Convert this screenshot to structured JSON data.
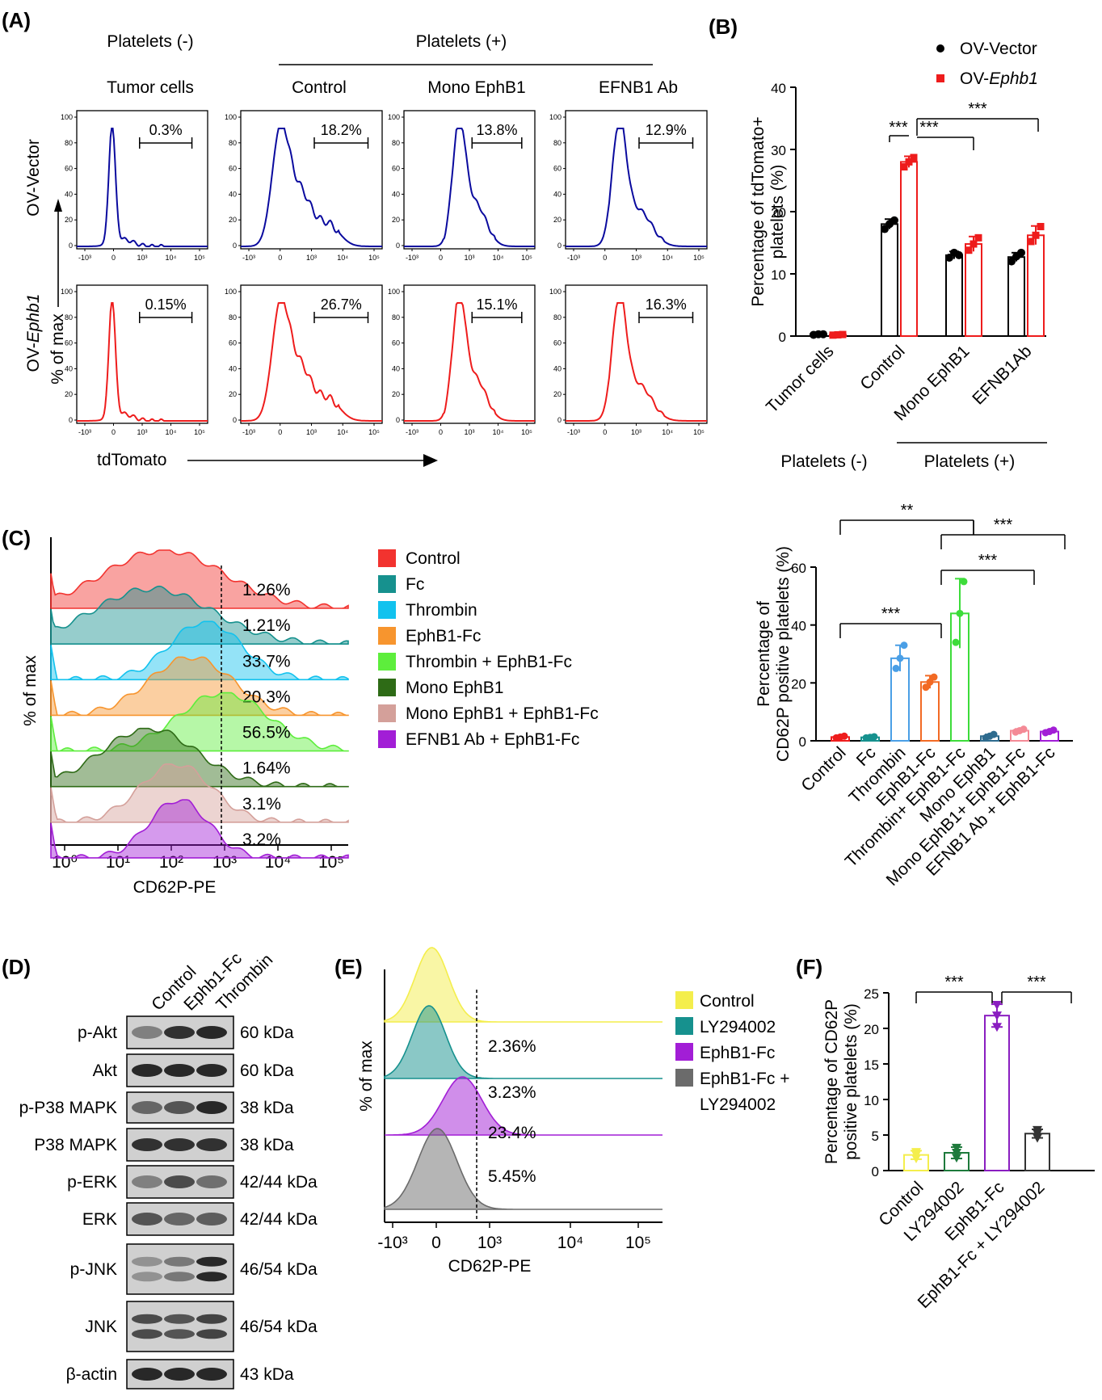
{
  "panel_labels": [
    "(A)",
    "(B)",
    "(C)",
    "(D)",
    "(E)",
    "(F)"
  ],
  "panel_a": {
    "header_platelets_neg": "Platelets (-)",
    "header_platelets_pos": "Platelets (+)",
    "columns": [
      "Tumor cells",
      "Control",
      "Mono EphB1",
      "EFNB1 Ab"
    ],
    "row_labels": {
      "ov_vector": "OV-Vector",
      "ov_ephb1_prefix": "OV-",
      "ov_ephb1_gene": "Ephb1"
    },
    "y_label": "% of max",
    "x_label": "tdTomato",
    "y_ticks": [
      "0",
      "20",
      "40",
      "60",
      "80",
      "100"
    ],
    "x_ticks": [
      "-10³",
      "0",
      "10³",
      "10⁴",
      "10⁵"
    ],
    "colors": {
      "ov_vector": "#0a0a9e",
      "ov_ephb1": "#ee1c1c"
    },
    "gates_ov_vector": [
      "0.3%",
      "18.2%",
      "13.8%",
      "12.9%"
    ],
    "gates_ov_ephb1": [
      "0.15%",
      "26.7%",
      "15.1%",
      "16.3%"
    ]
  },
  "panel_c": {
    "x_label": "CD62P-PE",
    "y_label": "% of max",
    "x_ticks": [
      "10⁰",
      "10¹",
      "10²",
      "10³",
      "10⁴",
      "10⁵"
    ],
    "legend": [
      {
        "label": "Control",
        "color": "#f2332f"
      },
      {
        "label": "Fc",
        "color": "#16918e"
      },
      {
        "label": "Thrombin",
        "color": "#12c2ee"
      },
      {
        "label": "EphB1-Fc",
        "color": "#f7952e"
      },
      {
        "label": "Thrombin + EphB1-Fc",
        "color": "#5dee3c"
      },
      {
        "label": "Mono EphB1",
        "color": "#2e6b16"
      },
      {
        "label": "Mono EphB1 + EphB1-Fc",
        "color": "#d4a09a"
      },
      {
        "label": "EFNB1 Ab +  EphB1-Fc",
        "color": "#a21ed6"
      }
    ],
    "gate_percents": [
      "1.26%",
      "1.21%",
      "33.7%",
      "20.3%",
      "56.5%",
      "1.64%",
      "3.1%",
      "3.2%"
    ]
  },
  "panel_d": {
    "lanes": [
      "Control",
      "Ephb1-Fc",
      "Thrombin"
    ],
    "blots": [
      {
        "protein": "p-Akt",
        "size": "60 kDa"
      },
      {
        "protein": "Akt",
        "size": "60 kDa"
      },
      {
        "protein": "p-P38 MAPK",
        "size": "38 kDa"
      },
      {
        "protein": "P38 MAPK",
        "size": "38 kDa"
      },
      {
        "protein": "p-ERK",
        "size": "42/44 kDa"
      },
      {
        "protein": "ERK",
        "size": "42/44 kDa"
      },
      {
        "protein": "p-JNK",
        "size": "46/54 kDa"
      },
      {
        "protein": "JNK",
        "size": "46/54 kDa"
      },
      {
        "protein": "β-actin",
        "size": "43 kDa"
      }
    ]
  },
  "panel_e": {
    "x_label": "CD62P-PE",
    "y_label": "% of max",
    "x_ticks": [
      "-10³",
      "0",
      "10³",
      "10⁴",
      "10⁵"
    ],
    "legend": [
      {
        "label": "Control",
        "color": "#f4ee4c"
      },
      {
        "label": "LY294002",
        "color": "#16918e"
      },
      {
        "label": "EphB1-Fc",
        "color": "#a21ed6"
      },
      {
        "label": "EphB1-Fc +",
        "color": "#6b6b6b"
      },
      {
        "label": "LY294002",
        "color": ""
      }
    ],
    "gate_percents": [
      "2.36%",
      "3.23%",
      "23.4%",
      "5.45%"
    ]
  },
  "chart_data": [
    {
      "type": "bar",
      "id": "B",
      "categories": [
        "Tumor cells",
        "Control",
        "Mono EphB1",
        "EFNB1Ab"
      ],
      "group_labels": {
        "neg": "Platelets (-)",
        "pos": "Platelets (+)"
      },
      "ylabel_lines": [
        "Percentage of tdTomato+",
        "platelets (%)"
      ],
      "ylim": [
        0,
        40
      ],
      "yticks": [
        0,
        10,
        20,
        30,
        40
      ],
      "legend_placement": "top-right",
      "legend_prefix": "OV-",
      "series": [
        {
          "name": "OV-Vector",
          "display": "Vector",
          "color": "#000000",
          "values": [
            0.3,
            18.0,
            13.0,
            12.7
          ],
          "sd": [
            0.1,
            0.8,
            0.6,
            0.7
          ],
          "points": [
            [
              0.2,
              0.3,
              0.3
            ],
            [
              17.2,
              18.0,
              18.6
            ],
            [
              12.6,
              13.4,
              13.0
            ],
            [
              12.0,
              12.8,
              13.4
            ]
          ]
        },
        {
          "name": "OV-Ephb1",
          "display": "Ephb1",
          "color": "#ee1c1c",
          "values": [
            0.2,
            28.0,
            14.8,
            16.2
          ],
          "sd": [
            0.1,
            0.9,
            1.2,
            1.5
          ],
          "points": [
            [
              0.15,
              0.2,
              0.25
            ],
            [
              27.2,
              28.0,
              28.7
            ],
            [
              13.8,
              14.8,
              15.8
            ],
            [
              15.2,
              16.2,
              17.6
            ]
          ]
        }
      ],
      "significance": [
        "***",
        "***",
        "***"
      ]
    },
    {
      "type": "bar",
      "id": "C",
      "categories": [
        "Control",
        "Fc",
        "Thrombin",
        "EphB1-Fc",
        "Thrombin+ EphB1-Fc",
        "Mono EphB1",
        "Mono EphB1+ EphB1-Fc",
        "EFNB1 Ab + EphB1-Fc"
      ],
      "ylabel_lines": [
        "Percentage of",
        "CD62P positive platelets (%)"
      ],
      "ylim": [
        0,
        60
      ],
      "yticks": [
        0,
        20,
        40,
        60
      ],
      "series": [
        {
          "values": [
            1.3,
            1.2,
            28.5,
            20.3,
            44.0,
            1.6,
            3.5,
            3.2
          ],
          "sd": [
            0.3,
            0.2,
            4.5,
            2.2,
            12.0,
            0.6,
            0.6,
            0.5
          ],
          "colors": [
            "#ee1c1c",
            "#16918e",
            "#4a9fe6",
            "#f26a24",
            "#3ddc3a",
            "#2e6b8e",
            "#f48a96",
            "#a21ed6"
          ],
          "points": [
            [
              1.0,
              1.3,
              1.6
            ],
            [
              1.0,
              1.2,
              1.4
            ],
            [
              25.0,
              28.5,
              33.0
            ],
            [
              18.5,
              20.3,
              22.0
            ],
            [
              34.0,
              44.0,
              55.0
            ],
            [
              1.0,
              1.6,
              2.2
            ],
            [
              3.0,
              3.5,
              4.0
            ],
            [
              2.8,
              3.2,
              3.7
            ]
          ]
        }
      ],
      "significance": [
        "**",
        "***",
        "***",
        "***"
      ]
    },
    {
      "type": "bar",
      "id": "F",
      "categories": [
        "Control",
        "LY294002",
        "EphB1-Fc",
        "EphB1-Fc + LY294002"
      ],
      "ylabel_lines": [
        "Percentage of CD62P",
        "positive platelets (%)"
      ],
      "ylim": [
        0,
        25
      ],
      "yticks": [
        0,
        5,
        10,
        15,
        20,
        25
      ],
      "series": [
        {
          "values": [
            2.2,
            2.5,
            21.8,
            5.2
          ],
          "sd": [
            0.6,
            0.8,
            1.6,
            0.6
          ],
          "colors": [
            "#f4ee4c",
            "#1e7a3c",
            "#8a1ec0",
            "#333333"
          ],
          "points": [
            [
              1.7,
              2.2,
              2.6
            ],
            [
              1.8,
              2.5,
              3.2
            ],
            [
              20.2,
              21.8,
              23.3
            ],
            [
              4.6,
              5.2,
              5.7
            ]
          ]
        }
      ],
      "significance": [
        "***",
        "***"
      ]
    }
  ]
}
